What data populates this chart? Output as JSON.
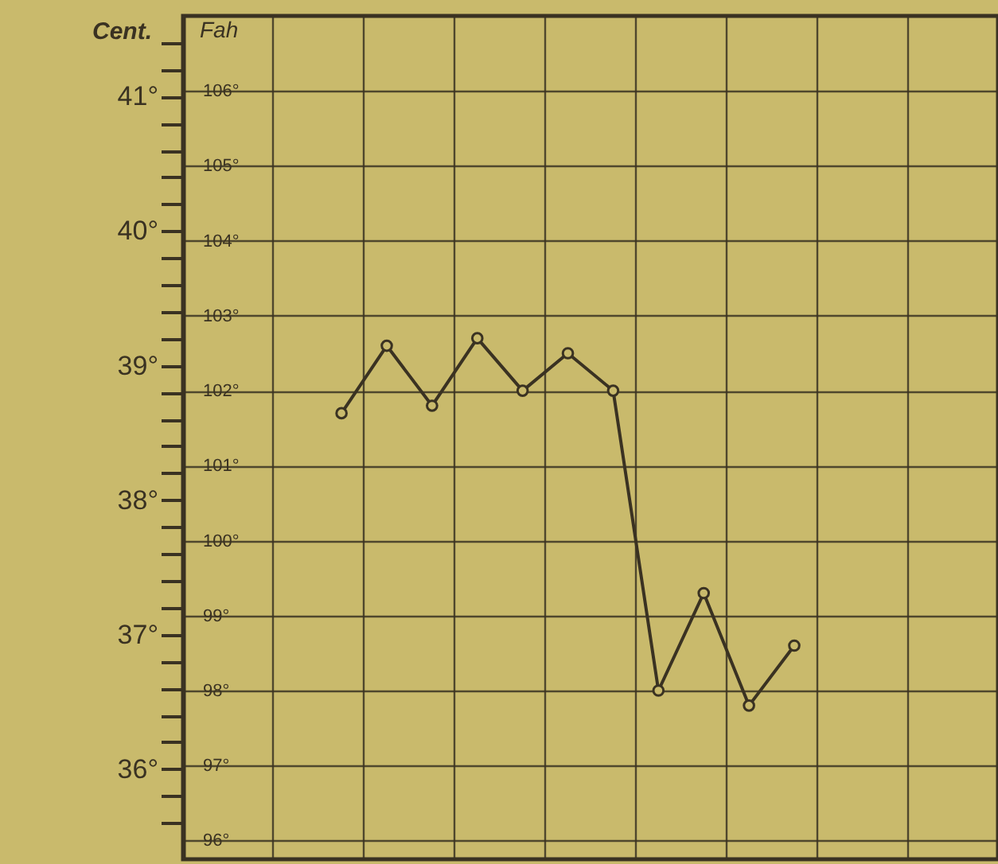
{
  "chart_data": {
    "type": "line",
    "ylabel": "Fah",
    "y2label": "Cent.",
    "categories": [
      null,
      null,
      null,
      null,
      null,
      null,
      null,
      null,
      null,
      null,
      null,
      null,
      null,
      null,
      null,
      null,
      null,
      null
    ],
    "series": [
      {
        "color": "#3a3222",
        "values": [
          null,
          null,
          null,
          101.7,
          102.6,
          101.8,
          102.7,
          102.0,
          102.5,
          102.0,
          98.0,
          99.3,
          97.8,
          98.6,
          null,
          null,
          null,
          null
        ]
      }
    ],
    "ylim": [
      95.75,
      107
    ],
    "yticks": [
      {
        "value": 96,
        "label": "96°"
      },
      {
        "value": 97,
        "label": "97°"
      },
      {
        "value": 98,
        "label": "98°"
      },
      {
        "value": 99,
        "label": "99°"
      },
      {
        "value": 100,
        "label": "100°"
      },
      {
        "value": 101,
        "label": "101°"
      },
      {
        "value": 102,
        "label": "102°"
      },
      {
        "value": 103,
        "label": "103°"
      },
      {
        "value": 104,
        "label": "104°"
      },
      {
        "value": 105,
        "label": "105°"
      },
      {
        "value": 106,
        "label": "106°"
      }
    ],
    "y2lim": [
      35.33,
      41.6
    ],
    "y2ticks": [
      {
        "value": 35.6,
        "label": null
      },
      {
        "value": 35.8,
        "label": null
      },
      {
        "value": 36,
        "label": "36°"
      },
      {
        "value": 36.2,
        "label": null
      },
      {
        "value": 36.4,
        "label": null
      },
      {
        "value": 36.6,
        "label": null
      },
      {
        "value": 36.8,
        "label": null
      },
      {
        "value": 37,
        "label": "37°"
      },
      {
        "value": 37.2,
        "label": null
      },
      {
        "value": 37.4,
        "label": null
      },
      {
        "value": 37.6,
        "label": null
      },
      {
        "value": 37.8,
        "label": null
      },
      {
        "value": 38,
        "label": "38°"
      },
      {
        "value": 38.2,
        "label": null
      },
      {
        "value": 38.4,
        "label": null
      },
      {
        "value": 38.6,
        "label": null
      },
      {
        "value": 38.8,
        "label": null
      },
      {
        "value": 39,
        "label": "39°"
      },
      {
        "value": 39.2,
        "label": null
      },
      {
        "value": 39.4,
        "label": null
      },
      {
        "value": 39.6,
        "label": null
      },
      {
        "value": 39.8,
        "label": null
      },
      {
        "value": 40,
        "label": "40°"
      },
      {
        "value": 40.2,
        "label": null
      },
      {
        "value": 40.4,
        "label": null
      },
      {
        "value": 40.6,
        "label": null
      },
      {
        "value": 40.8,
        "label": null
      },
      {
        "value": 41,
        "label": "41°"
      },
      {
        "value": 41.2,
        "label": null
      },
      {
        "value": 41.4,
        "label": null
      }
    ],
    "grid": true,
    "marker": "circle",
    "line_style": "solid",
    "tick_labels": "y"
  }
}
